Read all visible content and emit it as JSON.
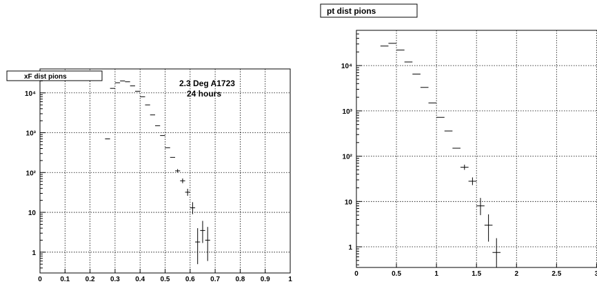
{
  "chart_data": [
    {
      "type": "scatter",
      "title": "xF dist pions",
      "annotations": [
        "2.3 Deg A1723",
        "24 hours"
      ],
      "xlim": [
        0,
        1
      ],
      "ylim": [
        0.3,
        40000
      ],
      "ylog": true,
      "grid": true,
      "x_ticks": [
        "0",
        "0.1",
        "0.2",
        "0.3",
        "0.4",
        "0.5",
        "0.6",
        "0.7",
        "0.8",
        "0.9",
        "1"
      ],
      "y_ticks": [
        {
          "value": 1,
          "label": "1"
        },
        {
          "value": 10,
          "label": "10"
        },
        {
          "value": 100,
          "label": "10²"
        },
        {
          "value": 1000,
          "label": "10³"
        },
        {
          "value": 10000,
          "label": "10⁴"
        }
      ],
      "points": [
        {
          "x": 0.27,
          "y": 700,
          "xerr": 0.01,
          "yerr_lo": 0,
          "yerr_hi": 0
        },
        {
          "x": 0.29,
          "y": 13000,
          "xerr": 0.01,
          "yerr_lo": 0,
          "yerr_hi": 0
        },
        {
          "x": 0.31,
          "y": 18000,
          "xerr": 0.01,
          "yerr_lo": 0,
          "yerr_hi": 0
        },
        {
          "x": 0.33,
          "y": 20000,
          "xerr": 0.01,
          "yerr_lo": 0,
          "yerr_hi": 0
        },
        {
          "x": 0.35,
          "y": 19000,
          "xerr": 0.01,
          "yerr_lo": 0,
          "yerr_hi": 0
        },
        {
          "x": 0.37,
          "y": 15000,
          "xerr": 0.01,
          "yerr_lo": 0,
          "yerr_hi": 0
        },
        {
          "x": 0.39,
          "y": 11000,
          "xerr": 0.01,
          "yerr_lo": 0,
          "yerr_hi": 0
        },
        {
          "x": 0.41,
          "y": 8000,
          "xerr": 0.01,
          "yerr_lo": 0,
          "yerr_hi": 0
        },
        {
          "x": 0.43,
          "y": 5000,
          "xerr": 0.01,
          "yerr_lo": 0,
          "yerr_hi": 0
        },
        {
          "x": 0.45,
          "y": 2800,
          "xerr": 0.01,
          "yerr_lo": 0,
          "yerr_hi": 0
        },
        {
          "x": 0.47,
          "y": 1500,
          "xerr": 0.01,
          "yerr_lo": 0,
          "yerr_hi": 0
        },
        {
          "x": 0.49,
          "y": 850,
          "xerr": 0.01,
          "yerr_lo": 0,
          "yerr_hi": 0
        },
        {
          "x": 0.51,
          "y": 420,
          "xerr": 0.01,
          "yerr_lo": 0,
          "yerr_hi": 0
        },
        {
          "x": 0.53,
          "y": 240,
          "xerr": 0.01,
          "yerr_lo": 0,
          "yerr_hi": 0
        },
        {
          "x": 0.55,
          "y": 110,
          "xerr": 0.01,
          "yerr_lo": 10,
          "yerr_hi": 12
        },
        {
          "x": 0.57,
          "y": 62,
          "xerr": 0.01,
          "yerr_lo": 8,
          "yerr_hi": 9
        },
        {
          "x": 0.59,
          "y": 32,
          "xerr": 0.01,
          "yerr_lo": 6,
          "yerr_hi": 7
        },
        {
          "x": 0.61,
          "y": 13,
          "xerr": 0.01,
          "yerr_lo": 4,
          "yerr_hi": 5
        },
        {
          "x": 0.63,
          "y": 1.8,
          "xerr": 0.01,
          "yerr_lo": 1.3,
          "yerr_hi": 2.2
        },
        {
          "x": 0.65,
          "y": 3.5,
          "xerr": 0.01,
          "yerr_lo": 1.8,
          "yerr_hi": 2.6
        },
        {
          "x": 0.67,
          "y": 2.0,
          "xerr": 0.01,
          "yerr_lo": 1.4,
          "yerr_hi": 2.3
        }
      ]
    },
    {
      "type": "scatter",
      "title": "pt dist pions",
      "xlim": [
        0,
        3.1
      ],
      "ylim": [
        0.35,
        60000
      ],
      "ylog": true,
      "grid": true,
      "x_ticks": [
        {
          "value": 0,
          "label": "0"
        },
        {
          "value": 0.5,
          "label": "0.5"
        },
        {
          "value": 1,
          "label": "1"
        },
        {
          "value": 1.5,
          "label": "1.5"
        },
        {
          "value": 2,
          "label": "2"
        },
        {
          "value": 2.5,
          "label": "2.5"
        },
        {
          "value": 3,
          "label": "3"
        }
      ],
      "y_ticks": [
        {
          "value": 1,
          "label": "1"
        },
        {
          "value": 10,
          "label": "10"
        },
        {
          "value": 100,
          "label": "10²"
        },
        {
          "value": 1000,
          "label": "10³"
        },
        {
          "value": 10000,
          "label": "10⁴"
        }
      ],
      "points": [
        {
          "x": 0.35,
          "y": 27000,
          "xerr": 0.05,
          "yerr_lo": 0,
          "yerr_hi": 0
        },
        {
          "x": 0.45,
          "y": 31000,
          "xerr": 0.05,
          "yerr_lo": 0,
          "yerr_hi": 0
        },
        {
          "x": 0.55,
          "y": 22000,
          "xerr": 0.05,
          "yerr_lo": 0,
          "yerr_hi": 0
        },
        {
          "x": 0.65,
          "y": 12000,
          "xerr": 0.05,
          "yerr_lo": 0,
          "yerr_hi": 0
        },
        {
          "x": 0.75,
          "y": 6500,
          "xerr": 0.05,
          "yerr_lo": 0,
          "yerr_hi": 0
        },
        {
          "x": 0.85,
          "y": 3300,
          "xerr": 0.05,
          "yerr_lo": 0,
          "yerr_hi": 0
        },
        {
          "x": 0.95,
          "y": 1500,
          "xerr": 0.05,
          "yerr_lo": 0,
          "yerr_hi": 0
        },
        {
          "x": 1.05,
          "y": 720,
          "xerr": 0.05,
          "yerr_lo": 0,
          "yerr_hi": 0
        },
        {
          "x": 1.15,
          "y": 360,
          "xerr": 0.05,
          "yerr_lo": 0,
          "yerr_hi": 0
        },
        {
          "x": 1.25,
          "y": 150,
          "xerr": 0.05,
          "yerr_lo": 0,
          "yerr_hi": 0
        },
        {
          "x": 1.35,
          "y": 57,
          "xerr": 0.05,
          "yerr_lo": 7,
          "yerr_hi": 8
        },
        {
          "x": 1.45,
          "y": 28,
          "xerr": 0.05,
          "yerr_lo": 5,
          "yerr_hi": 6
        },
        {
          "x": 1.55,
          "y": 8,
          "xerr": 0.05,
          "yerr_lo": 3,
          "yerr_hi": 4
        },
        {
          "x": 1.65,
          "y": 3,
          "xerr": 0.05,
          "yerr_lo": 1.7,
          "yerr_hi": 2.2
        },
        {
          "x": 1.75,
          "y": 0.75,
          "xerr": 0.05,
          "yerr_lo": 0.4,
          "yerr_hi": 0.8
        }
      ]
    }
  ]
}
